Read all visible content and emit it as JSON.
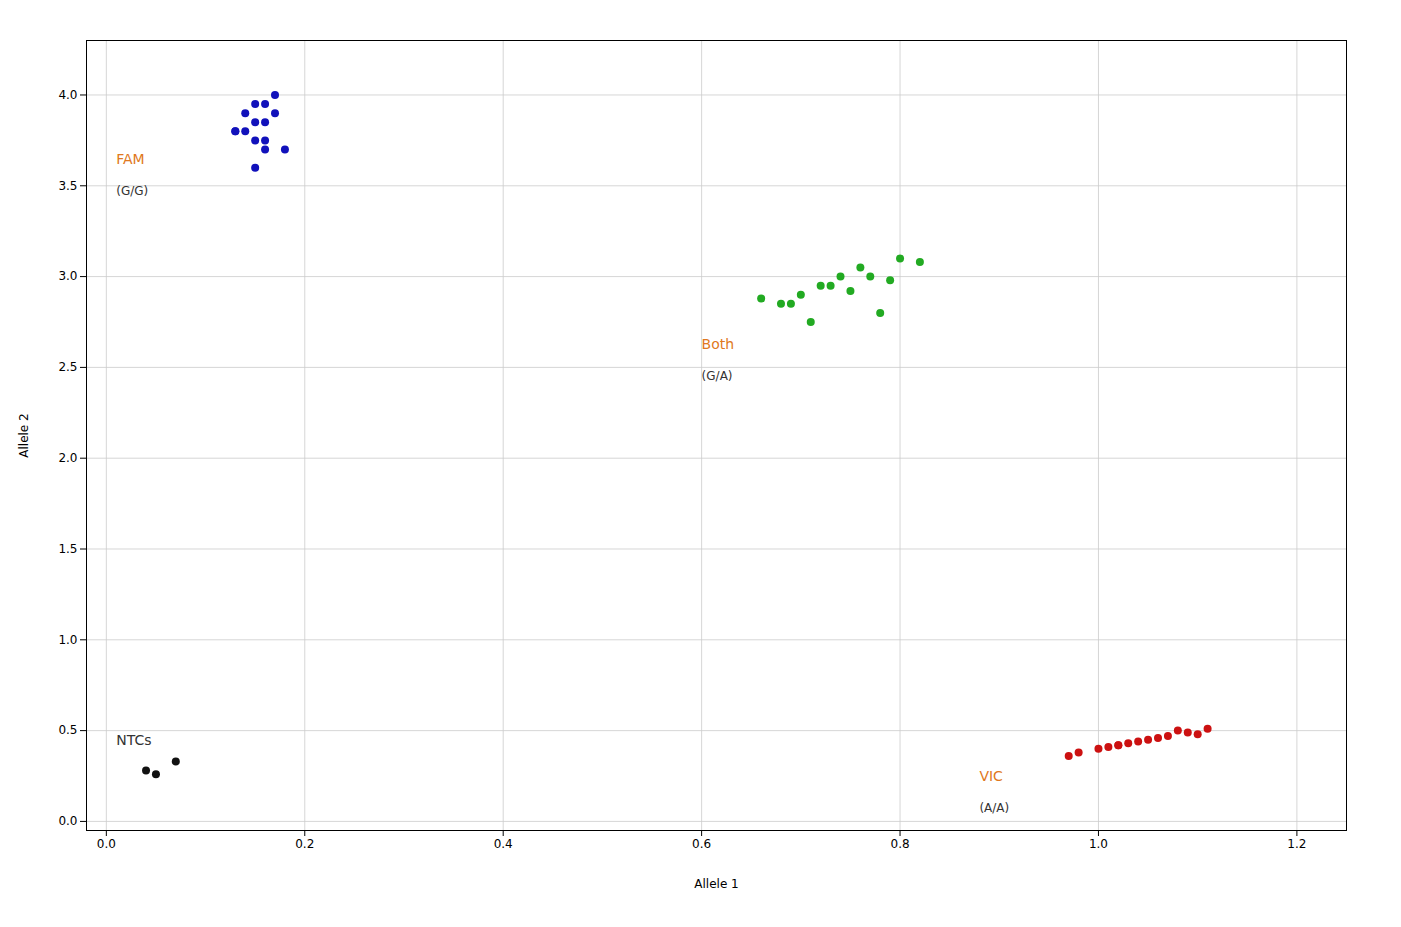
{
  "chart_data": {
    "type": "scatter",
    "x_label": "Allele 1",
    "y_label": "Allele 2",
    "xlim": [
      -0.02,
      1.25
    ],
    "ylim": [
      -0.05,
      4.3
    ],
    "xticks": [
      {
        "value": 0.0,
        "label": "0.0"
      },
      {
        "value": 0.2,
        "label": "0.2"
      },
      {
        "value": 0.4,
        "label": "0.4"
      },
      {
        "value": 0.6,
        "label": "0.6"
      },
      {
        "value": 0.8,
        "label": "0.8"
      },
      {
        "value": 1.0,
        "label": "1.0"
      },
      {
        "value": 1.2,
        "label": "1.2"
      }
    ],
    "yticks": [
      {
        "value": 0.0,
        "label": "0.0"
      },
      {
        "value": 0.5,
        "label": "0.5"
      },
      {
        "value": 1.0,
        "label": "1.0"
      },
      {
        "value": 1.5,
        "label": "1.5"
      },
      {
        "value": 2.0,
        "label": "2.0"
      },
      {
        "value": 2.5,
        "label": "2.5"
      },
      {
        "value": 3.0,
        "label": "3.0"
      },
      {
        "value": 3.5,
        "label": "3.5"
      },
      {
        "value": 4.0,
        "label": "4.0"
      }
    ],
    "grid": true,
    "series": [
      {
        "name": "FAM",
        "color": "#1111bb",
        "x": [
          0.13,
          0.14,
          0.15,
          0.16,
          0.17,
          0.16,
          0.15,
          0.14,
          0.16,
          0.17,
          0.15,
          0.16,
          0.18,
          0.13,
          0.15
        ],
        "values": [
          3.8,
          3.9,
          3.85,
          3.7,
          4.0,
          3.75,
          3.95,
          3.8,
          3.85,
          3.9,
          3.6,
          3.95,
          3.7,
          3.8,
          3.75
        ]
      },
      {
        "name": "Both",
        "color": "#22aa22",
        "x": [
          0.68,
          0.72,
          0.76,
          0.7,
          0.74,
          0.78,
          0.8,
          0.73,
          0.69,
          0.77,
          0.71,
          0.75,
          0.82,
          0.66,
          0.79
        ],
        "values": [
          2.85,
          2.95,
          3.05,
          2.9,
          3.0,
          2.8,
          3.1,
          2.95,
          2.85,
          3.0,
          2.75,
          2.92,
          3.08,
          2.88,
          2.98
        ]
      },
      {
        "name": "VIC",
        "color": "#cc1111",
        "x": [
          0.98,
          1.02,
          1.06,
          1.0,
          1.04,
          1.08,
          1.1,
          1.03,
          1.07,
          1.01,
          1.05,
          1.09,
          1.02,
          1.11,
          0.97
        ],
        "values": [
          0.38,
          0.42,
          0.46,
          0.4,
          0.44,
          0.5,
          0.48,
          0.43,
          0.47,
          0.41,
          0.45,
          0.49,
          0.42,
          0.51,
          0.36
        ]
      },
      {
        "name": "NTCs",
        "color": "#111111",
        "x": [
          0.04,
          0.07,
          0.05
        ],
        "values": [
          0.28,
          0.33,
          0.26
        ]
      }
    ],
    "annotations": [
      {
        "text": "FAM",
        "x": 0.01,
        "y": 3.62,
        "color": "#e07820"
      },
      {
        "text": "(G/G)",
        "x": 0.01,
        "y": 3.45,
        "color": "#333333"
      },
      {
        "text": "Both",
        "x": 0.6,
        "y": 2.6,
        "color": "#e07820"
      },
      {
        "text": "(G/A)",
        "x": 0.6,
        "y": 2.43,
        "color": "#333333"
      },
      {
        "text": "VIC",
        "x": 0.88,
        "y": 0.22,
        "color": "#e07820"
      },
      {
        "text": "(A/A)",
        "x": 0.88,
        "y": 0.05,
        "color": "#333333"
      },
      {
        "text": "NTCs",
        "x": 0.01,
        "y": 0.42,
        "color": "#333333"
      }
    ]
  }
}
